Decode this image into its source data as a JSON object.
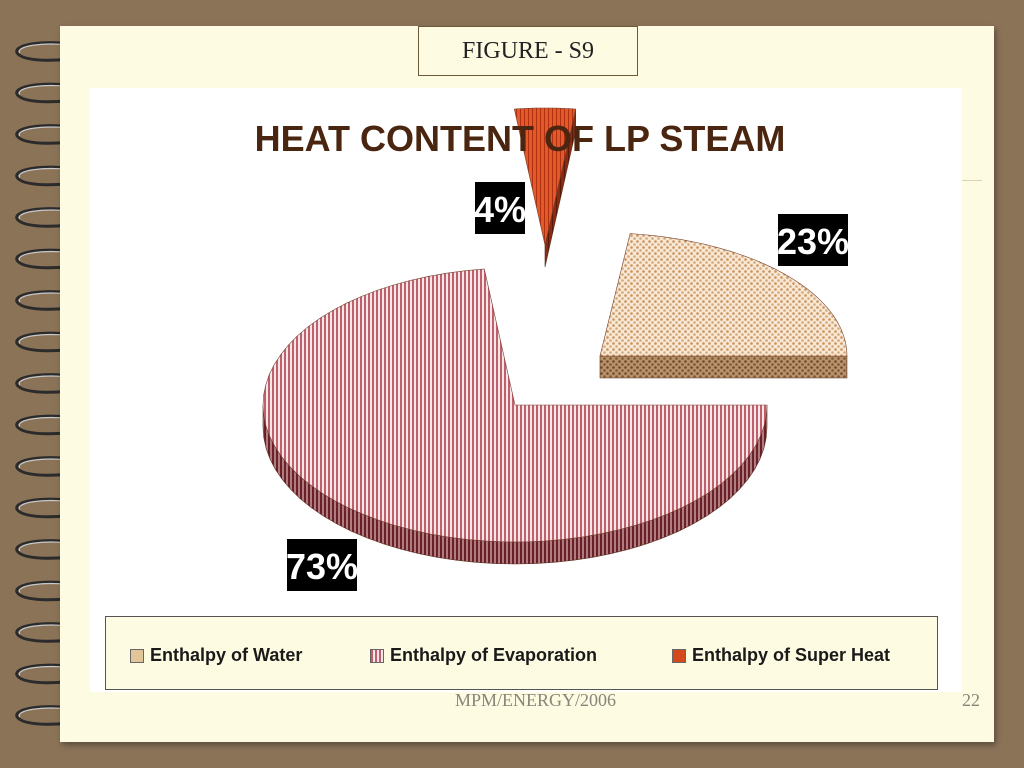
{
  "figure_label": "FIGURE - S9",
  "footer": {
    "left": "MPM/ENERGY/2006",
    "page_number": "22"
  },
  "colors": {
    "background": "#8b7358",
    "paper": "#fdfbe2",
    "title": "#4a2610",
    "water": "#e3c59b",
    "evaporation": "#c9707a",
    "super_heat": "#d4491c"
  },
  "icons": {
    "binding": "spiral-binding-icon"
  },
  "chart_data": {
    "type": "pie",
    "title": "HEAT CONTENT OF LP STEAM",
    "style": "3d-exploded",
    "legend_position": "bottom",
    "slices": [
      {
        "name": "Enthalpy of Water",
        "value": 23,
        "label": "23%"
      },
      {
        "name": "Enthalpy of Evaporation",
        "value": 73,
        "label": "73%"
      },
      {
        "name": "Enthalpy of Super Heat",
        "value": 4,
        "label": "4%"
      }
    ]
  }
}
